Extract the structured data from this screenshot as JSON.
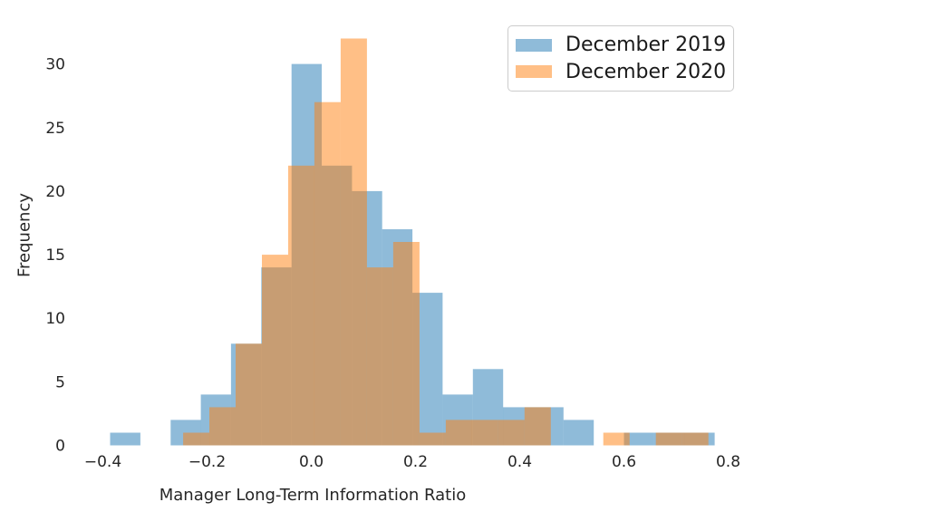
{
  "figure": {
    "background": "#ffffff",
    "text_color": "#262626"
  },
  "chart_data": {
    "type": "histogram",
    "title": "",
    "xlabel": "Manager Long-Term Information Ratio",
    "ylabel": "Frequency",
    "x_ticks": {
      "values": [
        -0.4,
        -0.2,
        0.0,
        0.2,
        0.4,
        0.6,
        0.8
      ],
      "labels": [
        "−0.4",
        "−0.2",
        "0.0",
        "0.2",
        "0.4",
        "0.6",
        "0.8"
      ]
    },
    "y_ticks": {
      "values": [
        0,
        5,
        10,
        15,
        20,
        25,
        30
      ],
      "labels": [
        "0",
        "5",
        "10",
        "15",
        "20",
        "25",
        "30"
      ]
    },
    "xlim": [
      -0.441,
      0.845
    ],
    "ylim": [
      0,
      34.3
    ],
    "grid": false,
    "legend": {
      "position": "upper right",
      "border_color": "#cccccc",
      "background": "#ffffff"
    },
    "series": [
      {
        "name": "December 2019",
        "color": "#1f77b4",
        "alpha": 0.5,
        "bin_start": -0.386,
        "bin_width": 0.058,
        "counts": [
          1,
          0,
          2,
          4,
          8,
          14,
          30,
          22,
          20,
          17,
          12,
          4,
          6,
          3,
          3,
          2,
          0,
          1,
          1,
          1
        ],
        "total": 151
      },
      {
        "name": "December 2020",
        "color": "#ff7f0e",
        "alpha": 0.5,
        "bin_start": -0.246,
        "bin_width": 0.0504,
        "counts": [
          1,
          3,
          8,
          15,
          22,
          27,
          32,
          14,
          16,
          1,
          2,
          2,
          2,
          3,
          0,
          0,
          1,
          0,
          1,
          1
        ],
        "total": 151
      }
    ]
  }
}
